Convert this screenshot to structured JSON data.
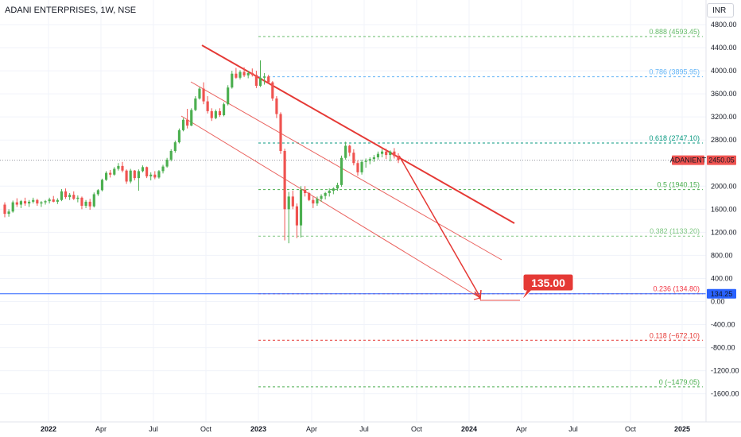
{
  "header": {
    "symbol_title": "ADANI ENTERPRISES, 1W, NSE",
    "currency_button": "INR"
  },
  "colors": {
    "up": "#26a69a",
    "up_fill": "#4caf50",
    "down": "#ef5350",
    "trend": "#e53935",
    "horizontal": "#2962ff"
  },
  "chart_data": {
    "type": "candlestick",
    "title": "",
    "symbol_label": "ADANIENT",
    "last_price_label": "2450.05",
    "horizontal_line_label": "134.25",
    "target_callout": "135.00",
    "y_axis_labels": [
      "4800.00",
      "4400.00",
      "4000.00",
      "3600.00",
      "3200.00",
      "2800.00",
      "2000.00",
      "1600.00",
      "1200.00",
      "800.00",
      "400.00",
      "0.00",
      "-400.00",
      "-800.00",
      "-1200.00",
      "-1600.00"
    ],
    "ylim": [
      -1900,
      5050
    ],
    "x_axis_labels": [
      "2022",
      "Apr",
      "Jul",
      "Oct",
      "2023",
      "Apr",
      "Jul",
      "Oct",
      "2024",
      "Apr",
      "Jul",
      "Oct",
      "2025"
    ],
    "fib_levels": [
      {
        "label": "0.888 (4593.45)",
        "price": 4593.45,
        "color": "#66bb6a"
      },
      {
        "label": "0.786 (3895.95)",
        "price": 3895.95,
        "color": "#64b5f6"
      },
      {
        "label": "0.618 (2747.10)",
        "price": 2747.1,
        "color": "#089981"
      },
      {
        "label": "0.5 (1940.15)",
        "price": 1940.15,
        "color": "#4caf50"
      },
      {
        "label": "0.382 (1133.20)",
        "price": 1133.2,
        "color": "#81c784"
      },
      {
        "label": "0.236 (134.80)",
        "price": 134.8,
        "color": "#f23645"
      },
      {
        "label": "0.118 (−672.10)",
        "price": -672.1,
        "color": "#e53935"
      },
      {
        "label": "0 (−1479.05)",
        "price": -1479.05,
        "color": "#4caf50"
      }
    ],
    "last_price": 2450.05,
    "horizontal_line_price": 134.25,
    "candles": [
      {
        "o": 1680,
        "h": 1720,
        "l": 1460,
        "c": 1520
      },
      {
        "o": 1520,
        "h": 1600,
        "l": 1470,
        "c": 1560
      },
      {
        "o": 1560,
        "h": 1750,
        "l": 1540,
        "c": 1720
      },
      {
        "o": 1720,
        "h": 1790,
        "l": 1640,
        "c": 1680
      },
      {
        "o": 1680,
        "h": 1760,
        "l": 1620,
        "c": 1740
      },
      {
        "o": 1740,
        "h": 1800,
        "l": 1660,
        "c": 1700
      },
      {
        "o": 1700,
        "h": 1760,
        "l": 1640,
        "c": 1730
      },
      {
        "o": 1730,
        "h": 1800,
        "l": 1700,
        "c": 1760
      },
      {
        "o": 1760,
        "h": 1780,
        "l": 1660,
        "c": 1700
      },
      {
        "o": 1700,
        "h": 1740,
        "l": 1640,
        "c": 1720
      },
      {
        "o": 1720,
        "h": 1760,
        "l": 1680,
        "c": 1740
      },
      {
        "o": 1740,
        "h": 1800,
        "l": 1700,
        "c": 1770
      },
      {
        "o": 1770,
        "h": 1830,
        "l": 1720,
        "c": 1730
      },
      {
        "o": 1730,
        "h": 1790,
        "l": 1690,
        "c": 1760
      },
      {
        "o": 1760,
        "h": 1950,
        "l": 1740,
        "c": 1910
      },
      {
        "o": 1910,
        "h": 1960,
        "l": 1780,
        "c": 1810
      },
      {
        "o": 1810,
        "h": 1880,
        "l": 1760,
        "c": 1850
      },
      {
        "o": 1850,
        "h": 1910,
        "l": 1760,
        "c": 1780
      },
      {
        "o": 1780,
        "h": 1840,
        "l": 1720,
        "c": 1800
      },
      {
        "o": 1800,
        "h": 1820,
        "l": 1600,
        "c": 1660
      },
      {
        "o": 1660,
        "h": 1760,
        "l": 1620,
        "c": 1730
      },
      {
        "o": 1730,
        "h": 1780,
        "l": 1590,
        "c": 1650
      },
      {
        "o": 1650,
        "h": 1890,
        "l": 1630,
        "c": 1860
      },
      {
        "o": 1860,
        "h": 1950,
        "l": 1830,
        "c": 1930
      },
      {
        "o": 1930,
        "h": 2130,
        "l": 1910,
        "c": 2110
      },
      {
        "o": 2110,
        "h": 2260,
        "l": 2090,
        "c": 2230
      },
      {
        "o": 2230,
        "h": 2280,
        "l": 2150,
        "c": 2200
      },
      {
        "o": 2200,
        "h": 2330,
        "l": 2180,
        "c": 2300
      },
      {
        "o": 2300,
        "h": 2400,
        "l": 2270,
        "c": 2350
      },
      {
        "o": 2350,
        "h": 2420,
        "l": 2240,
        "c": 2270
      },
      {
        "o": 2270,
        "h": 2290,
        "l": 2040,
        "c": 2080
      },
      {
        "o": 2080,
        "h": 2300,
        "l": 2050,
        "c": 2270
      },
      {
        "o": 2270,
        "h": 2280,
        "l": 2100,
        "c": 2140
      },
      {
        "o": 2140,
        "h": 2290,
        "l": 1920,
        "c": 2260
      },
      {
        "o": 2260,
        "h": 2360,
        "l": 2240,
        "c": 2330
      },
      {
        "o": 2330,
        "h": 2340,
        "l": 2140,
        "c": 2170
      },
      {
        "o": 2170,
        "h": 2240,
        "l": 2100,
        "c": 2200
      },
      {
        "o": 2200,
        "h": 2260,
        "l": 2120,
        "c": 2150
      },
      {
        "o": 2150,
        "h": 2280,
        "l": 2130,
        "c": 2260
      },
      {
        "o": 2260,
        "h": 2370,
        "l": 2220,
        "c": 2340
      },
      {
        "o": 2340,
        "h": 2490,
        "l": 2320,
        "c": 2460
      },
      {
        "o": 2460,
        "h": 2640,
        "l": 2430,
        "c": 2610
      },
      {
        "o": 2610,
        "h": 2790,
        "l": 2580,
        "c": 2760
      },
      {
        "o": 2760,
        "h": 3000,
        "l": 2740,
        "c": 2970
      },
      {
        "o": 2970,
        "h": 3180,
        "l": 2950,
        "c": 3150
      },
      {
        "o": 3150,
        "h": 3340,
        "l": 3000,
        "c": 3050
      },
      {
        "o": 3050,
        "h": 3350,
        "l": 3040,
        "c": 3320
      },
      {
        "o": 3320,
        "h": 3560,
        "l": 3300,
        "c": 3520
      },
      {
        "o": 3520,
        "h": 3720,
        "l": 3500,
        "c": 3690
      },
      {
        "o": 3690,
        "h": 3800,
        "l": 3420,
        "c": 3470
      },
      {
        "o": 3470,
        "h": 3560,
        "l": 3260,
        "c": 3300
      },
      {
        "o": 3300,
        "h": 3350,
        "l": 3130,
        "c": 3180
      },
      {
        "o": 3180,
        "h": 3330,
        "l": 3160,
        "c": 3300
      },
      {
        "o": 3300,
        "h": 3350,
        "l": 3200,
        "c": 3230
      },
      {
        "o": 3230,
        "h": 3450,
        "l": 3210,
        "c": 3420
      },
      {
        "o": 3420,
        "h": 3750,
        "l": 3400,
        "c": 3710
      },
      {
        "o": 3710,
        "h": 4000,
        "l": 3690,
        "c": 3950
      },
      {
        "o": 3950,
        "h": 4050,
        "l": 3860,
        "c": 3880
      },
      {
        "o": 3880,
        "h": 4010,
        "l": 3850,
        "c": 3980
      },
      {
        "o": 3980,
        "h": 4060,
        "l": 3890,
        "c": 3920
      },
      {
        "o": 3920,
        "h": 4000,
        "l": 3870,
        "c": 3960
      },
      {
        "o": 3960,
        "h": 4040,
        "l": 3900,
        "c": 3930
      },
      {
        "o": 3930,
        "h": 4000,
        "l": 3700,
        "c": 3740
      },
      {
        "o": 3740,
        "h": 4180,
        "l": 3720,
        "c": 3880
      },
      {
        "o": 3880,
        "h": 3960,
        "l": 3760,
        "c": 3900
      },
      {
        "o": 3900,
        "h": 3930,
        "l": 3780,
        "c": 3800
      },
      {
        "o": 3800,
        "h": 3820,
        "l": 3480,
        "c": 3520
      },
      {
        "o": 3520,
        "h": 3560,
        "l": 3180,
        "c": 3250
      },
      {
        "o": 3250,
        "h": 3280,
        "l": 2560,
        "c": 2610
      },
      {
        "o": 2610,
        "h": 2650,
        "l": 1060,
        "c": 1600
      },
      {
        "o": 1600,
        "h": 1900,
        "l": 1010,
        "c": 1820
      },
      {
        "o": 1820,
        "h": 1920,
        "l": 1600,
        "c": 1650
      },
      {
        "o": 1650,
        "h": 1700,
        "l": 1100,
        "c": 1320
      },
      {
        "o": 1320,
        "h": 2000,
        "l": 1110,
        "c": 1940
      },
      {
        "o": 1940,
        "h": 2000,
        "l": 1820,
        "c": 1880
      },
      {
        "o": 1880,
        "h": 1900,
        "l": 1740,
        "c": 1760
      },
      {
        "o": 1760,
        "h": 1820,
        "l": 1620,
        "c": 1700
      },
      {
        "o": 1700,
        "h": 1820,
        "l": 1660,
        "c": 1780
      },
      {
        "o": 1780,
        "h": 1860,
        "l": 1730,
        "c": 1830
      },
      {
        "o": 1830,
        "h": 1900,
        "l": 1770,
        "c": 1880
      },
      {
        "o": 1880,
        "h": 1960,
        "l": 1820,
        "c": 1920
      },
      {
        "o": 1920,
        "h": 1980,
        "l": 1860,
        "c": 1960
      },
      {
        "o": 1960,
        "h": 2060,
        "l": 1920,
        "c": 2020
      },
      {
        "o": 2020,
        "h": 2530,
        "l": 1990,
        "c": 2490
      },
      {
        "o": 2490,
        "h": 2770,
        "l": 2460,
        "c": 2700
      },
      {
        "o": 2700,
        "h": 2720,
        "l": 2520,
        "c": 2580
      },
      {
        "o": 2580,
        "h": 2640,
        "l": 2360,
        "c": 2400
      },
      {
        "o": 2400,
        "h": 2450,
        "l": 2180,
        "c": 2240
      },
      {
        "o": 2240,
        "h": 2460,
        "l": 2200,
        "c": 2420
      },
      {
        "o": 2420,
        "h": 2480,
        "l": 2320,
        "c": 2440
      },
      {
        "o": 2440,
        "h": 2500,
        "l": 2380,
        "c": 2470
      },
      {
        "o": 2470,
        "h": 2540,
        "l": 2420,
        "c": 2500
      },
      {
        "o": 2500,
        "h": 2600,
        "l": 2460,
        "c": 2560
      },
      {
        "o": 2560,
        "h": 2640,
        "l": 2500,
        "c": 2600
      },
      {
        "o": 2600,
        "h": 2650,
        "l": 2470,
        "c": 2540
      },
      {
        "o": 2540,
        "h": 2620,
        "l": 2430,
        "c": 2600
      },
      {
        "o": 2600,
        "h": 2660,
        "l": 2480,
        "c": 2520
      },
      {
        "o": 2520,
        "h": 2570,
        "l": 2400,
        "c": 2450
      }
    ]
  }
}
